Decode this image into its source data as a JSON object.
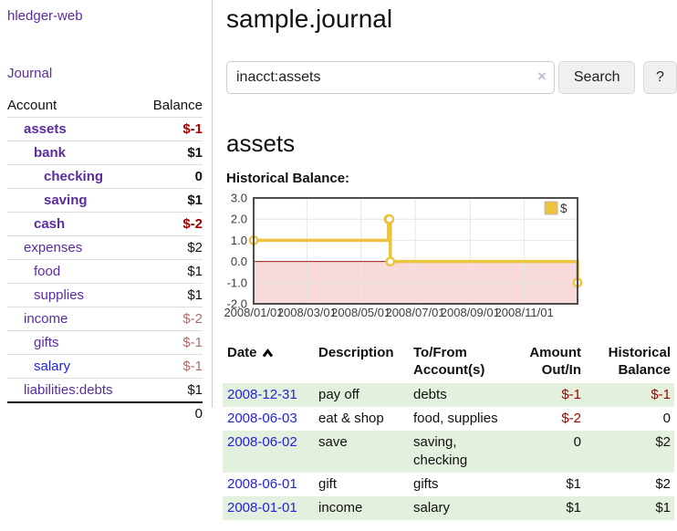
{
  "app": {
    "brand": "hledger-web"
  },
  "sidebar": {
    "journal_label": "Journal",
    "accounts_table": {
      "headers": {
        "account": "Account",
        "balance": "Balance"
      },
      "rows": [
        {
          "name": "assets",
          "depth": 1,
          "bold": true,
          "name_color": "purple",
          "balance": "$-1",
          "balance_color": "neg-strong"
        },
        {
          "name": "bank",
          "depth": 2,
          "bold": true,
          "name_color": "purple",
          "balance": "$1",
          "balance_color": "black"
        },
        {
          "name": "checking",
          "depth": 3,
          "bold": true,
          "name_color": "purple",
          "balance": "0",
          "balance_color": "black"
        },
        {
          "name": "saving",
          "depth": 3,
          "bold": true,
          "name_color": "purple",
          "balance": "$1",
          "balance_color": "black"
        },
        {
          "name": "cash",
          "depth": 2,
          "bold": true,
          "name_color": "purple",
          "balance": "$-2",
          "balance_color": "neg-strong"
        },
        {
          "name": "expenses",
          "depth": 1,
          "bold": false,
          "name_color": "purple",
          "balance": "$2",
          "balance_color": "black"
        },
        {
          "name": "food",
          "depth": 2,
          "bold": false,
          "name_color": "purple",
          "balance": "$1",
          "balance_color": "black"
        },
        {
          "name": "supplies",
          "depth": 2,
          "bold": false,
          "name_color": "purple",
          "balance": "$1",
          "balance_color": "black"
        },
        {
          "name": "income",
          "depth": 1,
          "bold": false,
          "name_color": "purple",
          "balance": "$-2",
          "balance_color": "neg-soft"
        },
        {
          "name": "gifts",
          "depth": 2,
          "bold": false,
          "name_color": "purple",
          "balance": "$-1",
          "balance_color": "neg-soft"
        },
        {
          "name": "salary",
          "depth": 2,
          "bold": false,
          "name_color": "blue",
          "balance": "$-1",
          "balance_color": "neg-soft"
        },
        {
          "name": "liabilities:debts",
          "depth": 1,
          "bold": false,
          "name_color": "purple",
          "balance": "$1",
          "balance_color": "black"
        }
      ],
      "total": "0"
    }
  },
  "main": {
    "title": "sample.journal",
    "search": {
      "value": "inacct:assets",
      "button_label": "Search",
      "help_label": "?",
      "clear_icon": "×"
    },
    "section_title": "assets",
    "chart_label": "Historical Balance:"
  },
  "chart_data": {
    "type": "line",
    "step": true,
    "title": "Historical Balance:",
    "x_start": "2008-01-01",
    "x_end": "2008-12-31",
    "ylim": [
      -2,
      3
    ],
    "yticks": [
      3,
      2,
      1,
      0,
      -1,
      -2
    ],
    "xticks": [
      {
        "date": "2008-01-01",
        "label": "2008/01/01"
      },
      {
        "date": "2008-03-01",
        "label": "2008/03/01"
      },
      {
        "date": "2008-05-01",
        "label": "2008/05/01"
      },
      {
        "date": "2008-07-01",
        "label": "2008/07/01"
      },
      {
        "date": "2008-09-01",
        "label": "2008/09/01"
      },
      {
        "date": "2008-11-01",
        "label": "2008/11/01"
      }
    ],
    "series": [
      {
        "name": "$",
        "color": "#edc240",
        "points": [
          {
            "x": "2008-01-01",
            "y": 1
          },
          {
            "x": "2008-06-01",
            "y": 2
          },
          {
            "x": "2008-06-02",
            "y": 2
          },
          {
            "x": "2008-06-03",
            "y": 0
          },
          {
            "x": "2008-12-31",
            "y": -1
          }
        ]
      }
    ],
    "legend": {
      "label": "$",
      "position": "top-right"
    },
    "negative_region_color": "#f9dada",
    "zero_line_color": "#9e1a1a",
    "grid_color": "#e6e6e6",
    "border_color": "#4d4d4d"
  },
  "register": {
    "headers": {
      "date": "Date",
      "description": "Description",
      "accounts": "To/From Account(s)",
      "amount": "Amount Out/In",
      "balance": "Historical Balance"
    },
    "sort": {
      "column": "date",
      "direction": "ascending"
    },
    "rows": [
      {
        "date": "2008-12-31",
        "description": "pay off",
        "accounts": "debts",
        "amount": "$-1",
        "amount_negative": true,
        "balance": "$-1",
        "balance_negative": true
      },
      {
        "date": "2008-06-03",
        "description": "eat & shop",
        "accounts": "food, supplies",
        "amount": "$-2",
        "amount_negative": true,
        "balance": "0",
        "balance_negative": false
      },
      {
        "date": "2008-06-02",
        "description": "save",
        "accounts": "saving, checking",
        "amount": "0",
        "amount_negative": false,
        "balance": "$2",
        "balance_negative": false
      },
      {
        "date": "2008-06-01",
        "description": "gift",
        "accounts": "gifts",
        "amount": "$1",
        "amount_negative": false,
        "balance": "$2",
        "balance_negative": false
      },
      {
        "date": "2008-01-01",
        "description": "income",
        "accounts": "salary",
        "amount": "$1",
        "amount_negative": false,
        "balance": "$1",
        "balance_negative": false
      }
    ]
  },
  "colors": {
    "link_purple": "#5a2ca0",
    "link_blue": "#2222dd",
    "negative_strong": "#a40000",
    "negative_soft": "#b36b6b",
    "row_green": "#e3f0dd",
    "series_yellow": "#edc240"
  }
}
